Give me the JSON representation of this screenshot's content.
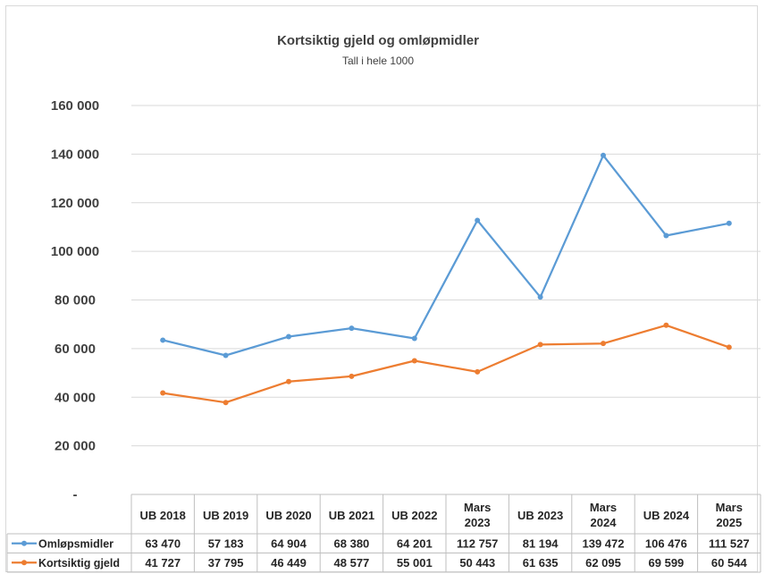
{
  "chart_data": {
    "type": "line",
    "title": "Kortsiktig gjeld og omløpmidler",
    "subtitle": "Tall i hele 1000",
    "categories": [
      [
        "UB 2018"
      ],
      [
        "UB 2019"
      ],
      [
        "UB 2020"
      ],
      [
        "UB 2021"
      ],
      [
        "UB 2022"
      ],
      [
        "Mars",
        "2023"
      ],
      [
        "UB 2023"
      ],
      [
        "Mars",
        "2024"
      ],
      [
        "UB 2024"
      ],
      [
        "Mars",
        "2025"
      ]
    ],
    "ylim": [
      0,
      160000
    ],
    "yticks": [
      {
        "value": 0,
        "label": "-"
      },
      {
        "value": 20000,
        "label": "20 000"
      },
      {
        "value": 40000,
        "label": "40 000"
      },
      {
        "value": 60000,
        "label": "60 000"
      },
      {
        "value": 80000,
        "label": "80 000"
      },
      {
        "value": 100000,
        "label": "100 000"
      },
      {
        "value": 120000,
        "label": "120 000"
      },
      {
        "value": 140000,
        "label": "140 000"
      },
      {
        "value": 160000,
        "label": "160 000"
      }
    ],
    "grid": true,
    "legend": "data-table",
    "series": [
      {
        "name": "Omløpsmidler",
        "color": "#5b9bd5",
        "values": [
          63470,
          57183,
          64904,
          68380,
          64201,
          112757,
          81194,
          139472,
          106476,
          111527
        ],
        "labels": [
          "63 470",
          "57 183",
          "64 904",
          "68 380",
          "64 201",
          "112 757",
          "81 194",
          "139 472",
          "106 476",
          "111 527"
        ]
      },
      {
        "name": "Kortsiktig gjeld",
        "color": "#ed7d31",
        "values": [
          41727,
          37795,
          46449,
          48577,
          55001,
          50443,
          61635,
          62095,
          69599,
          60544
        ],
        "labels": [
          "41 727",
          "37 795",
          "46 449",
          "48 577",
          "55 001",
          "50 443",
          "61 635",
          "62 095",
          "69 599",
          "60 544"
        ]
      }
    ]
  }
}
